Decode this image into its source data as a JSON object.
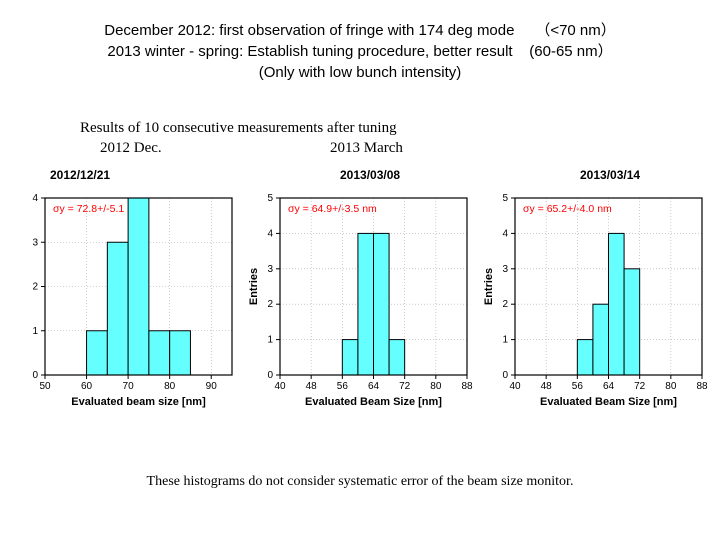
{
  "header": {
    "line1_left": "December 2012: first observation of fringe with 174 deg mode",
    "line1_right": "（<70 nm）",
    "line2_left": "2013 winter - spring: Establish tuning procedure, better result",
    "line2_right": "(60-65 nm）",
    "line3": "(Only with low bunch intensity)"
  },
  "subheader": {
    "title": "Results of 10 consecutive measurements after tuning",
    "year1": "2012 Dec.",
    "year2": "2013 March"
  },
  "footnote": "These histograms do not consider systematic error of the beam size monitor.",
  "charts": [
    {
      "date": "2012/12/21",
      "sigma": "σy = 72.8+/-5.1",
      "ylabel": "",
      "xlabel": "Evaluated beam size [nm]",
      "xlim": [
        50,
        95
      ],
      "ylim": [
        0,
        4
      ],
      "xticks": [
        50,
        60,
        70,
        80,
        90
      ],
      "yticks": [
        0,
        1,
        2,
        3,
        4
      ],
      "bar_color": "#66ffff",
      "bar_edge": "#000000",
      "bars": [
        {
          "x0": 60,
          "x1": 65,
          "y": 1
        },
        {
          "x0": 65,
          "x1": 70,
          "y": 3
        },
        {
          "x0": 70,
          "x1": 75,
          "y": 4
        },
        {
          "x0": 75,
          "x1": 80,
          "y": 1
        },
        {
          "x0": 80,
          "x1": 85,
          "y": 1
        }
      ],
      "grid_color": "#aaaaaa"
    },
    {
      "date": "2013/03/08",
      "sigma": "σy = 64.9+/-3.5 nm",
      "ylabel": "Entries",
      "xlabel": "Evaluated Beam Size [nm]",
      "xlim": [
        40,
        88
      ],
      "ylim": [
        0,
        5
      ],
      "xticks": [
        40,
        48,
        56,
        64,
        72,
        80,
        88
      ],
      "yticks": [
        0,
        1,
        2,
        3,
        4,
        5
      ],
      "bar_color": "#66ffff",
      "bar_edge": "#000000",
      "bars": [
        {
          "x0": 56,
          "x1": 60,
          "y": 1
        },
        {
          "x0": 60,
          "x1": 64,
          "y": 4
        },
        {
          "x0": 64,
          "x1": 68,
          "y": 4
        },
        {
          "x0": 68,
          "x1": 72,
          "y": 1
        }
      ],
      "grid_color": "#aaaaaa"
    },
    {
      "date": "2013/03/14",
      "sigma": "σy = 65.2+/-4.0 nm",
      "ylabel": "Entries",
      "xlabel": "Evaluated Beam Size [nm]",
      "xlim": [
        40,
        88
      ],
      "ylim": [
        0,
        5
      ],
      "xticks": [
        40,
        48,
        56,
        64,
        72,
        80,
        88
      ],
      "yticks": [
        0,
        1,
        2,
        3,
        4,
        5
      ],
      "bar_color": "#66ffff",
      "bar_edge": "#000000",
      "bars": [
        {
          "x0": 56,
          "x1": 60,
          "y": 1
        },
        {
          "x0": 60,
          "x1": 64,
          "y": 2
        },
        {
          "x0": 64,
          "x1": 68,
          "y": 4
        },
        {
          "x0": 68,
          "x1": 72,
          "y": 3
        }
      ],
      "grid_color": "#aaaaaa"
    }
  ]
}
